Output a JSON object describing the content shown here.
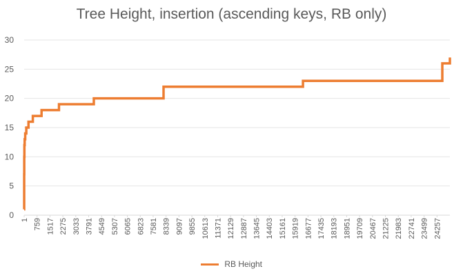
{
  "chart_data": {
    "type": "line",
    "title": "Tree Height, insertion (ascending keys, RB only)",
    "xlabel": "",
    "ylabel": "",
    "ylim": [
      0,
      30
    ],
    "yticks": [
      0,
      5,
      10,
      15,
      20,
      25,
      30
    ],
    "x_tick_labels": [
      "1",
      "759",
      "1517",
      "2275",
      "3033",
      "3791",
      "4549",
      "5307",
      "6065",
      "6823",
      "7581",
      "8339",
      "9097",
      "9855",
      "10613",
      "11371",
      "12129",
      "12887",
      "13645",
      "14403",
      "15161",
      "15919",
      "16677",
      "17435",
      "18193",
      "18951",
      "19709",
      "20467",
      "21225",
      "21983",
      "22741",
      "23499",
      "24257"
    ],
    "x_tick_step": 758,
    "xlim": [
      1,
      25015
    ],
    "grid": "horizontal",
    "legend_position": "bottom",
    "color": "#ED7D31",
    "series": [
      {
        "name": "RB Height",
        "x": [
          1,
          3,
          7,
          15,
          31,
          63,
          127,
          255,
          511,
          1023,
          2047,
          4095,
          8191,
          16383,
          24570,
          25015
        ],
        "values": [
          1,
          7,
          10,
          12,
          13,
          14,
          15,
          16,
          17,
          18,
          19,
          20,
          22,
          23,
          26,
          27
        ]
      }
    ]
  }
}
